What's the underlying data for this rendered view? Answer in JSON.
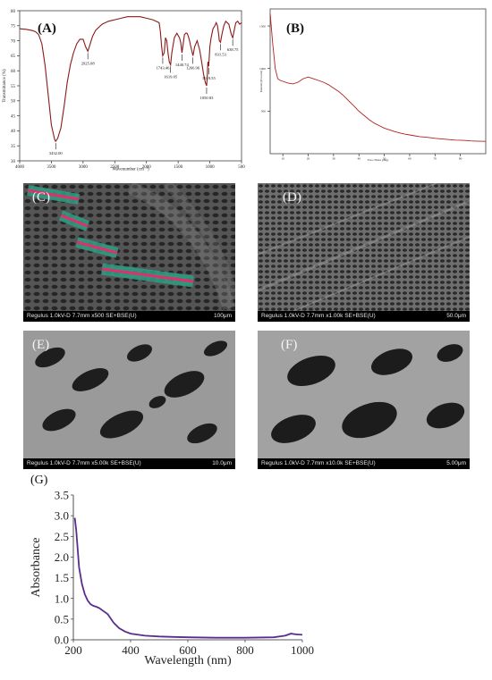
{
  "panels": {
    "a": "(A)",
    "b": "(B)",
    "c": "(C)",
    "d": "(D)",
    "e": "(E)",
    "f": "(F)",
    "g": "(G)"
  },
  "sem_images": [
    {
      "label": "(C)",
      "info": "Regulus 1.0kV-D 7.7mm x500 SE+BSE(U)",
      "scale": "100μm"
    },
    {
      "label": "(D)",
      "info": "Regulus 1.0kV-D 7.7mm x1.00k SE+BSE(U)",
      "scale": "50.0μm"
    },
    {
      "label": "(E)",
      "info": "Regulus 1.0kV-D 7.7mm x5.00k SE+BSE(U)",
      "scale": "10.0μm"
    },
    {
      "label": "(F)",
      "info": "Regulus 1.0kV-D 7.7mm x10.0k SE+BSE(U)",
      "scale": "5.00μm"
    }
  ],
  "chart_data": [
    {
      "panel": "(A)",
      "type": "line",
      "xlabel": "Wavenumber (cm⁻¹)",
      "ylabel": "Transmittance (%)",
      "xlim": [
        4000,
        500
      ],
      "ylim": [
        30,
        80
      ],
      "x_ticks": [
        4000,
        3500,
        3000,
        2500,
        2000,
        1500,
        1000,
        500
      ],
      "y_ticks": [
        30,
        35,
        40,
        45,
        50,
        55,
        60,
        65,
        70,
        75,
        80
      ],
      "color": "#8b1a1a",
      "x": [
        4000,
        3900,
        3800,
        3750,
        3700,
        3650,
        3600,
        3550,
        3500,
        3450,
        3432,
        3400,
        3350,
        3300,
        3250,
        3200,
        3150,
        3100,
        3050,
        3000,
        2960,
        2925,
        2880,
        2850,
        2800,
        2700,
        2600,
        2500,
        2400,
        2300,
        2200,
        2100,
        2000,
        1900,
        1800,
        1780,
        1760,
        1743,
        1720,
        1700,
        1680,
        1660,
        1640,
        1619,
        1600,
        1560,
        1520,
        1480,
        1460,
        1440,
        1420,
        1400,
        1380,
        1360,
        1340,
        1320,
        1300,
        1267,
        1240,
        1200,
        1160,
        1130,
        1100,
        1070,
        1051,
        1040,
        1030,
        1018,
        1000,
        980,
        950,
        920,
        900,
        880,
        860,
        850,
        831,
        810,
        780,
        750,
        700,
        660,
        639,
        620,
        590,
        560,
        530,
        500
      ],
      "y": [
        74,
        73.8,
        73.4,
        73,
        72,
        69,
        62,
        52,
        42,
        37.2,
        36.5,
        37.5,
        41,
        48,
        56,
        62,
        66,
        69,
        70.5,
        70.5,
        68,
        66.5,
        69.5,
        71.5,
        73.5,
        75.5,
        76.5,
        77,
        77.5,
        78,
        78,
        78,
        77.5,
        77,
        76,
        73,
        68,
        65,
        66,
        71,
        70,
        66,
        63,
        62,
        66,
        71,
        72.5,
        71,
        69.5,
        66,
        69,
        72,
        72.5,
        72.5,
        71.5,
        70,
        68,
        65,
        68,
        70,
        67,
        63,
        59,
        56,
        55,
        58,
        63,
        61.5,
        68,
        71,
        74,
        75,
        76,
        75,
        72,
        70,
        69.5,
        72,
        75,
        76.5,
        75.5,
        72,
        71,
        73,
        76,
        76.5,
        75.5,
        76
      ],
      "annotations": [
        {
          "x": 3432,
          "y": 36.5,
          "text": "3432.00"
        },
        {
          "x": 2925,
          "y": 66.5,
          "text": "2925.08"
        },
        {
          "x": 1743,
          "y": 65,
          "text": "1743.46"
        },
        {
          "x": 1619,
          "y": 62,
          "text": "1619.05"
        },
        {
          "x": 1441,
          "y": 66,
          "text": "1440.74"
        },
        {
          "x": 1267,
          "y": 65,
          "text": "1266.96"
        },
        {
          "x": 1051,
          "y": 55,
          "text": "1050.83"
        },
        {
          "x": 1018,
          "y": 61.5,
          "text": "1018.55"
        },
        {
          "x": 831,
          "y": 69.5,
          "text": "831.53"
        },
        {
          "x": 639,
          "y": 71,
          "text": "638.75"
        }
      ]
    },
    {
      "panel": "(B)",
      "type": "line",
      "xlabel": "Two-Theta (deg)",
      "ylabel": "Intensity(Counts)",
      "xlim": [
        5,
        90
      ],
      "ylim": [
        0,
        1700
      ],
      "x_ticks": [
        10,
        20,
        30,
        40,
        50,
        60,
        70,
        80
      ],
      "y_ticks": [
        500,
        1000,
        1500
      ],
      "color": "#b22222",
      "x": [
        5,
        6,
        7,
        8,
        9,
        10,
        12,
        14,
        16,
        18,
        20,
        22,
        24,
        26,
        28,
        30,
        32,
        34,
        36,
        38,
        40,
        42,
        44,
        46,
        48,
        50,
        52,
        54,
        56,
        58,
        60,
        62,
        64,
        66,
        68,
        70,
        72,
        74,
        76,
        78,
        80,
        82,
        84,
        86,
        88,
        90
      ],
      "y": [
        1650,
        1300,
        1000,
        880,
        860,
        850,
        830,
        820,
        840,
        880,
        900,
        880,
        860,
        840,
        810,
        770,
        730,
        680,
        620,
        560,
        500,
        450,
        400,
        360,
        330,
        300,
        280,
        260,
        245,
        230,
        220,
        210,
        200,
        195,
        188,
        180,
        175,
        170,
        165,
        160,
        158,
        155,
        150,
        148,
        146,
        145
      ]
    },
    {
      "panel": "(G)",
      "type": "line",
      "xlabel": "Wavelength (nm)",
      "ylabel": "Absorbance",
      "xlim": [
        200,
        1000
      ],
      "ylim": [
        0,
        3.5
      ],
      "x_ticks": [
        200,
        400,
        600,
        800,
        1000
      ],
      "y_ticks": [
        0.0,
        0.5,
        1.0,
        1.5,
        2.0,
        2.5,
        3.0,
        3.5
      ],
      "color": "#5b2c8f",
      "x": [
        205,
        210,
        215,
        220,
        230,
        240,
        250,
        260,
        270,
        280,
        290,
        300,
        320,
        340,
        360,
        380,
        400,
        450,
        500,
        550,
        600,
        700,
        800,
        900,
        940,
        960,
        980,
        1000
      ],
      "y": [
        2.95,
        2.65,
        2.2,
        1.75,
        1.35,
        1.1,
        0.95,
        0.86,
        0.82,
        0.8,
        0.77,
        0.72,
        0.62,
        0.42,
        0.28,
        0.2,
        0.15,
        0.1,
        0.08,
        0.07,
        0.06,
        0.05,
        0.05,
        0.06,
        0.1,
        0.15,
        0.13,
        0.12
      ]
    }
  ]
}
